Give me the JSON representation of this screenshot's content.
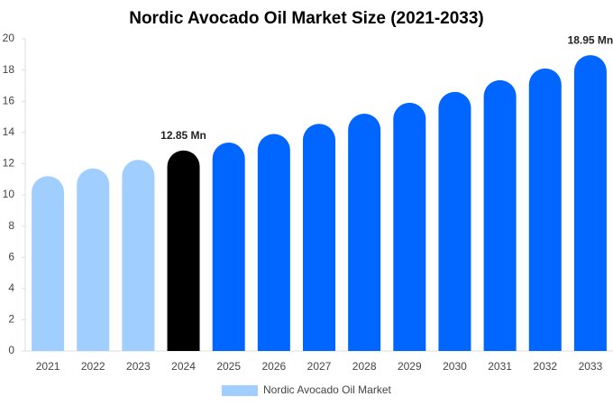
{
  "chart_data": {
    "type": "bar",
    "title": "Nordic Avocado Oil Market Size (2021-2033)",
    "categories": [
      "2021",
      "2022",
      "2023",
      "2024",
      "2025",
      "2026",
      "2027",
      "2028",
      "2029",
      "2030",
      "2031",
      "2032",
      "2033"
    ],
    "series": [
      {
        "name": "Nordic Avocado Oil Market",
        "color": "#a0cfff",
        "colors": [
          "#a0cfff",
          "#a0cfff",
          "#a0cfff",
          "#000000",
          "#0066ff",
          "#0066ff",
          "#0066ff",
          "#0066ff",
          "#0066ff",
          "#0066ff",
          "#0066ff",
          "#0066ff",
          "#0066ff"
        ],
        "values": [
          11.2,
          11.7,
          12.25,
          12.85,
          13.35,
          13.9,
          14.55,
          15.2,
          15.9,
          16.6,
          17.35,
          18.1,
          18.95
        ],
        "value_labels": [
          null,
          null,
          null,
          "12.85 Mn",
          null,
          null,
          null,
          null,
          null,
          null,
          null,
          null,
          "18.95 Mn"
        ]
      }
    ],
    "ylim": [
      0,
      20
    ],
    "yticks": [
      0,
      2,
      4,
      6,
      8,
      10,
      12,
      14,
      16,
      18,
      20
    ],
    "grid": false
  }
}
